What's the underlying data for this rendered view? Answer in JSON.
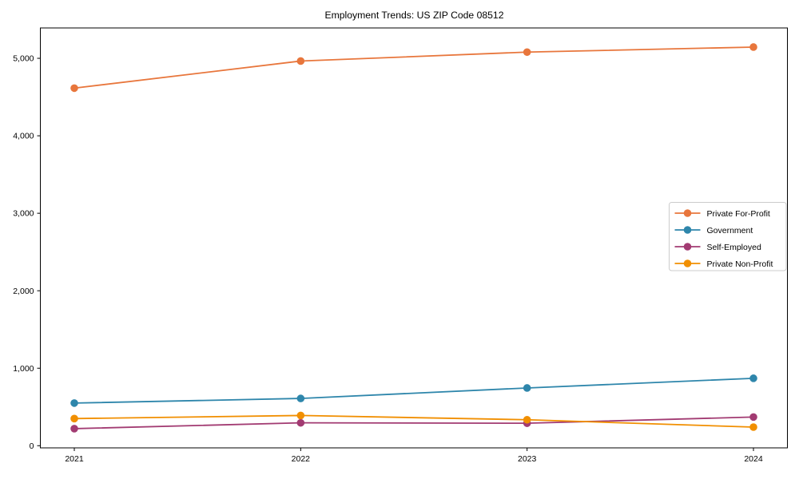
{
  "chart_data": {
    "type": "line",
    "title": "Employment Trends: US ZIP Code 08512",
    "categories": [
      "2021",
      "2022",
      "2023",
      "2024"
    ],
    "series": [
      {
        "name": "Private For-Profit",
        "color": "#e8763c",
        "values": [
          4615,
          4965,
          5080,
          5145
        ]
      },
      {
        "name": "Government",
        "color": "#2e86ab",
        "values": [
          550,
          610,
          745,
          870
        ]
      },
      {
        "name": "Self-Employed",
        "color": "#a23b72",
        "values": [
          220,
          295,
          290,
          370
        ]
      },
      {
        "name": "Private Non-Profit",
        "color": "#f18f01",
        "values": [
          350,
          390,
          335,
          240
        ]
      }
    ],
    "yticks": [
      0,
      1000,
      2000,
      3000,
      4000,
      5000
    ],
    "ytick_labels": [
      "0",
      "1,000",
      "2,000",
      "3,000",
      "4,000",
      "5,000"
    ],
    "ylim": [
      -28,
      5392
    ],
    "xlabel": "",
    "ylabel": "",
    "grid": false,
    "legend_position": "center-right",
    "axis_color": "#000000",
    "legend_border_color": "#cccccc"
  }
}
